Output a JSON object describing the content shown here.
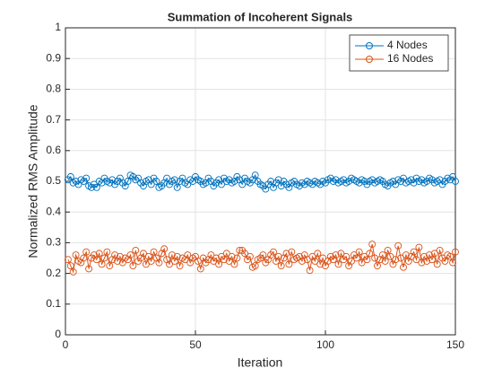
{
  "chart_data": {
    "type": "line",
    "title": "Summation of Incoherent Signals",
    "xlabel": "Iteration",
    "ylabel": "Normalized RMS Amplitude",
    "x": [
      1,
      2,
      3,
      4,
      5,
      6,
      7,
      8,
      9,
      10,
      11,
      12,
      13,
      14,
      15,
      16,
      17,
      18,
      19,
      20,
      21,
      22,
      23,
      24,
      25,
      26,
      27,
      28,
      29,
      30,
      31,
      32,
      33,
      34,
      35,
      36,
      37,
      38,
      39,
      40,
      41,
      42,
      43,
      44,
      45,
      46,
      47,
      48,
      49,
      50,
      51,
      52,
      53,
      54,
      55,
      56,
      57,
      58,
      59,
      60,
      61,
      62,
      63,
      64,
      65,
      66,
      67,
      68,
      69,
      70,
      71,
      72,
      73,
      74,
      75,
      76,
      77,
      78,
      79,
      80,
      81,
      82,
      83,
      84,
      85,
      86,
      87,
      88,
      89,
      90,
      91,
      92,
      93,
      94,
      95,
      96,
      97,
      98,
      99,
      100,
      101,
      102,
      103,
      104,
      105,
      106,
      107,
      108,
      109,
      110,
      111,
      112,
      113,
      114,
      115,
      116,
      117,
      118,
      119,
      120,
      121,
      122,
      123,
      124,
      125,
      126,
      127,
      128,
      129,
      130,
      131,
      132,
      133,
      134,
      135,
      136,
      137,
      138,
      139,
      140,
      141,
      142,
      143,
      144,
      145,
      146,
      147,
      148,
      149,
      150
    ],
    "series": [
      {
        "name": "4 Nodes",
        "color": "#0072bd",
        "values": [
          0.505,
          0.515,
          0.495,
          0.5,
          0.49,
          0.505,
          0.5,
          0.51,
          0.485,
          0.48,
          0.49,
          0.48,
          0.5,
          0.495,
          0.51,
          0.5,
          0.495,
          0.505,
          0.49,
          0.5,
          0.51,
          0.495,
          0.485,
          0.5,
          0.52,
          0.515,
          0.505,
          0.51,
          0.495,
          0.485,
          0.5,
          0.505,
          0.49,
          0.51,
          0.5,
          0.48,
          0.485,
          0.495,
          0.51,
          0.49,
          0.5,
          0.505,
          0.48,
          0.5,
          0.51,
          0.495,
          0.49,
          0.505,
          0.5,
          0.515,
          0.505,
          0.5,
          0.49,
          0.495,
          0.51,
          0.5,
          0.485,
          0.495,
          0.505,
          0.49,
          0.51,
          0.5,
          0.505,
          0.495,
          0.5,
          0.515,
          0.505,
          0.49,
          0.51,
          0.5,
          0.495,
          0.505,
          0.52,
          0.5,
          0.49,
          0.485,
          0.475,
          0.49,
          0.5,
          0.48,
          0.495,
          0.505,
          0.485,
          0.5,
          0.49,
          0.48,
          0.495,
          0.5,
          0.49,
          0.485,
          0.495,
          0.49,
          0.5,
          0.495,
          0.49,
          0.5,
          0.495,
          0.49,
          0.5,
          0.495,
          0.505,
          0.51,
          0.5,
          0.505,
          0.495,
          0.5,
          0.505,
          0.495,
          0.5,
          0.51,
          0.505,
          0.5,
          0.495,
          0.505,
          0.5,
          0.49,
          0.5,
          0.505,
          0.495,
          0.5,
          0.505,
          0.5,
          0.49,
          0.485,
          0.495,
          0.5,
          0.49,
          0.505,
          0.5,
          0.51,
          0.495,
          0.5,
          0.505,
          0.495,
          0.51,
          0.5,
          0.505,
          0.495,
          0.5,
          0.51,
          0.505,
          0.495,
          0.5,
          0.505,
          0.49,
          0.5,
          0.51,
          0.505,
          0.515,
          0.5
        ]
      },
      {
        "name": "16 Nodes",
        "color": "#d95319",
        "values": [
          0.245,
          0.225,
          0.205,
          0.26,
          0.24,
          0.235,
          0.25,
          0.27,
          0.215,
          0.25,
          0.26,
          0.245,
          0.265,
          0.23,
          0.25,
          0.27,
          0.225,
          0.245,
          0.26,
          0.24,
          0.255,
          0.235,
          0.25,
          0.245,
          0.26,
          0.225,
          0.275,
          0.24,
          0.25,
          0.265,
          0.23,
          0.255,
          0.24,
          0.27,
          0.25,
          0.235,
          0.265,
          0.28,
          0.245,
          0.23,
          0.26,
          0.24,
          0.255,
          0.225,
          0.25,
          0.245,
          0.26,
          0.235,
          0.25,
          0.255,
          0.24,
          0.215,
          0.25,
          0.235,
          0.245,
          0.26,
          0.24,
          0.25,
          0.23,
          0.255,
          0.245,
          0.265,
          0.24,
          0.255,
          0.23,
          0.25,
          0.275,
          0.275,
          0.265,
          0.245,
          0.255,
          0.22,
          0.225,
          0.245,
          0.25,
          0.26,
          0.235,
          0.245,
          0.26,
          0.27,
          0.24,
          0.255,
          0.225,
          0.25,
          0.265,
          0.23,
          0.27,
          0.245,
          0.25,
          0.255,
          0.24,
          0.26,
          0.245,
          0.21,
          0.255,
          0.24,
          0.265,
          0.23,
          0.25,
          0.225,
          0.24,
          0.255,
          0.245,
          0.26,
          0.23,
          0.265,
          0.245,
          0.255,
          0.225,
          0.24,
          0.26,
          0.25,
          0.27,
          0.235,
          0.255,
          0.245,
          0.265,
          0.295,
          0.25,
          0.225,
          0.245,
          0.26,
          0.24,
          0.275,
          0.255,
          0.23,
          0.245,
          0.29,
          0.25,
          0.22,
          0.26,
          0.24,
          0.255,
          0.27,
          0.245,
          0.285,
          0.235,
          0.255,
          0.24,
          0.26,
          0.245,
          0.265,
          0.23,
          0.275,
          0.25,
          0.24,
          0.26,
          0.255,
          0.235,
          0.27
        ]
      }
    ],
    "xlim": [
      0,
      150
    ],
    "xticks": [
      0,
      50,
      100,
      150
    ],
    "ylim": [
      0,
      1
    ],
    "yticks": [
      0,
      0.1,
      0.2,
      0.3,
      0.4,
      0.5,
      0.6,
      0.7,
      0.8,
      0.9,
      1
    ],
    "grid": true,
    "legend": "northeast"
  }
}
